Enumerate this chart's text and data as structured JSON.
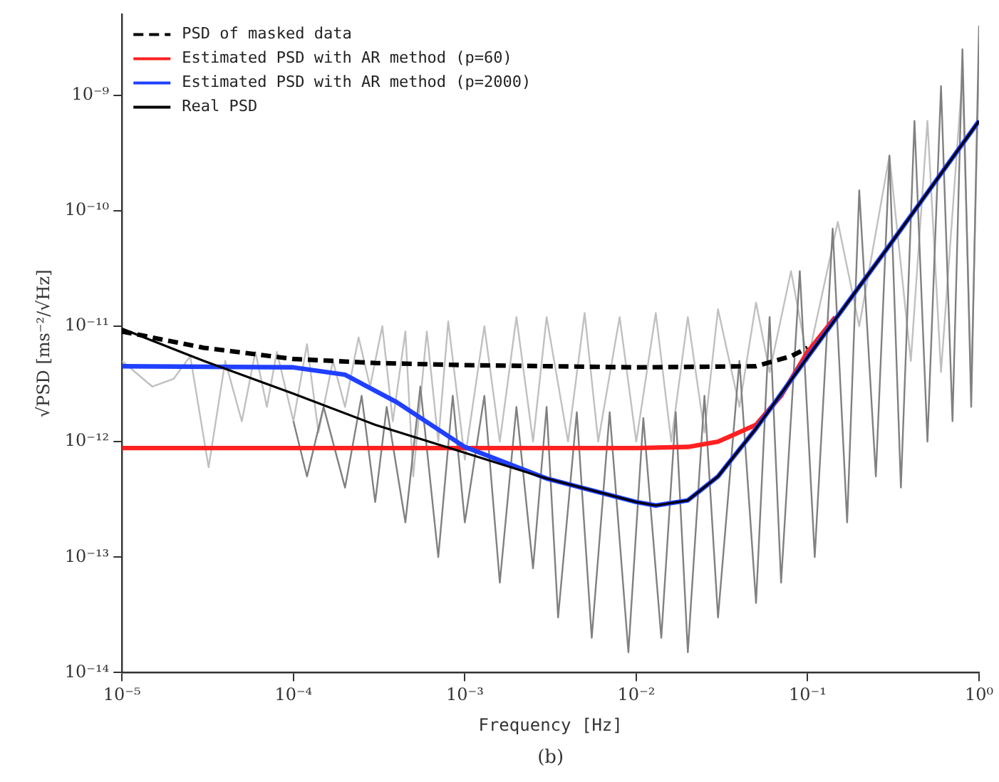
{
  "chart_data": {
    "type": "line",
    "xlabel": "Frequency [Hz]",
    "ylabel": "√PSD [ms⁻²/√Hz]",
    "log": "xy",
    "grid": false,
    "legend": "top left",
    "marker": "none",
    "xlim": [
      1e-05,
      1
    ],
    "ylim": [
      1e-14,
      5e-09
    ],
    "xticks": [
      {
        "value": 1e-05,
        "label": "10⁻⁵"
      },
      {
        "value": 0.0001,
        "label": "10⁻⁴"
      },
      {
        "value": 0.001,
        "label": "10⁻³"
      },
      {
        "value": 0.01,
        "label": "10⁻²"
      },
      {
        "value": 0.1,
        "label": "10⁻¹"
      },
      {
        "value": 1,
        "label": "10⁰"
      }
    ],
    "yticks": [
      {
        "value": 1e-14,
        "label": "10⁻¹⁴"
      },
      {
        "value": 1e-13,
        "label": "10⁻¹³"
      },
      {
        "value": 1e-12,
        "label": "10⁻¹²"
      },
      {
        "value": 1e-11,
        "label": "10⁻¹¹"
      },
      {
        "value": 1e-10,
        "label": "10⁻¹⁰"
      },
      {
        "value": 1e-09,
        "label": "10⁻⁹"
      }
    ],
    "annotations": [
      "(b)"
    ],
    "series": [
      {
        "color": "#c0c0c0",
        "x": [
          1e-05,
          1.5e-05,
          2e-05,
          2.5e-05,
          3.2e-05,
          4e-05,
          5e-05,
          6e-05,
          7e-05,
          8e-05,
          0.0001,
          0.00012,
          0.00014,
          0.00017,
          0.0002,
          0.00024,
          0.00028,
          0.00033,
          0.00038,
          0.00045,
          0.0005,
          0.0006,
          0.0007,
          0.0008,
          0.001,
          0.0013,
          0.0016,
          0.002,
          0.0025,
          0.003,
          0.004,
          0.005,
          0.006,
          0.008,
          0.01,
          0.013,
          0.016,
          0.02,
          0.025,
          0.03,
          0.04,
          0.05,
          0.06,
          0.08,
          0.1,
          0.15,
          0.2,
          0.3,
          0.4,
          0.5,
          0.6,
          0.8,
          0.9,
          1
        ],
        "values": [
          5e-12,
          3e-12,
          3.5e-12,
          5.5e-12,
          6e-13,
          5e-12,
          1.5e-12,
          6e-12,
          2e-12,
          6e-12,
          1.5e-12,
          7e-12,
          1.2e-12,
          5e-12,
          2e-12,
          8e-12,
          3e-12,
          1e-11,
          1.5e-12,
          9e-12,
          5e-13,
          9e-12,
          1e-12,
          1.1e-11,
          7e-13,
          1e-11,
          1e-12,
          1.2e-11,
          1e-12,
          1.2e-11,
          1e-12,
          1.3e-11,
          1e-12,
          1.2e-11,
          1e-12,
          1.3e-11,
          1e-12,
          1.2e-11,
          1.2e-12,
          1.4e-11,
          2e-12,
          1.6e-11,
          4e-12,
          3e-11,
          5e-12,
          8e-11,
          1e-11,
          3e-10,
          5e-12,
          6e-10,
          4e-12,
          1.5e-09,
          3e-12,
          2e-09
        ]
      },
      {
        "color": "#808080",
        "x": [
          0.0001,
          0.00012,
          0.00015,
          0.0002,
          0.00025,
          0.0003,
          0.00035,
          0.00045,
          0.00055,
          0.0007,
          0.00085,
          0.001,
          0.0013,
          0.0016,
          0.002,
          0.0025,
          0.003,
          0.0035,
          0.0045,
          0.0055,
          0.007,
          0.009,
          0.011,
          0.014,
          0.017,
          0.02,
          0.025,
          0.03,
          0.04,
          0.05,
          0.06,
          0.07,
          0.09,
          0.11,
          0.14,
          0.17,
          0.2,
          0.25,
          0.3,
          0.35,
          0.42,
          0.5,
          0.6,
          0.7,
          0.8,
          0.9,
          1
        ],
        "values": [
          1.5e-12,
          5e-13,
          2e-12,
          4e-13,
          2.5e-12,
          3e-13,
          2e-12,
          2e-13,
          3e-12,
          1e-13,
          2.5e-12,
          2e-13,
          2.5e-12,
          6e-14,
          2e-12,
          8e-14,
          2e-12,
          3e-14,
          1.8e-12,
          2e-14,
          1.8e-12,
          1.5e-14,
          1.6e-12,
          2e-14,
          1.8e-12,
          1.5e-14,
          2.5e-12,
          3e-14,
          5e-12,
          4e-14,
          1.2e-11,
          6e-14,
          3e-11,
          1e-13,
          7e-11,
          2e-13,
          1.5e-10,
          5e-13,
          3e-10,
          4e-13,
          6e-10,
          1e-12,
          1.2e-09,
          1.5e-12,
          2.5e-09,
          2e-12,
          4e-09
        ]
      },
      {
        "name": "PSD of masked data",
        "color": "#000000",
        "line_style": "dashed",
        "x": [
          1e-05,
          3e-05,
          0.0001,
          0.0003,
          0.001,
          0.01,
          0.05,
          0.08,
          0.1
        ],
        "values": [
          9e-12,
          6.5e-12,
          5.2e-12,
          4.8e-12,
          4.6e-12,
          4.4e-12,
          4.5e-12,
          5.5e-12,
          6.5e-12
        ]
      },
      {
        "name": "Estimated PSD with AR method (p=60)",
        "color": "#ff2020",
        "x": [
          1e-05,
          0.001,
          0.01,
          0.02,
          0.03,
          0.05,
          0.07,
          0.1,
          0.145
        ],
        "values": [
          8.8e-13,
          8.8e-13,
          8.8e-13,
          9e-13,
          1e-12,
          1.4e-12,
          2.5e-12,
          6e-12,
          1.2e-11
        ]
      },
      {
        "name": "Estimated PSD with AR method (p=2000)",
        "color": "#2040ff",
        "x": [
          1e-05,
          0.0001,
          0.0002,
          0.0004,
          0.001,
          0.003,
          0.01,
          0.013,
          0.02,
          0.03,
          0.05,
          0.1,
          0.3,
          1
        ],
        "values": [
          4.5e-12,
          4.4e-12,
          3.8e-12,
          2.2e-12,
          9e-13,
          4.8e-13,
          3e-13,
          2.8e-13,
          3.1e-13,
          5e-13,
          1.3e-12,
          5.4e-12,
          5e-11,
          6e-10
        ]
      },
      {
        "name": "Real PSD",
        "color": "#000000",
        "x": [
          1e-05,
          3e-05,
          0.0001,
          0.0003,
          0.001,
          0.003,
          0.01,
          0.013,
          0.02,
          0.03,
          0.05,
          0.1,
          0.3,
          1
        ],
        "values": [
          9.5e-12,
          5e-12,
          2.6e-12,
          1.4e-12,
          8e-13,
          4.8e-13,
          3e-13,
          2.8e-13,
          3.1e-13,
          5e-13,
          1.3e-12,
          5.4e-12,
          5e-11,
          6e-10
        ]
      }
    ]
  }
}
